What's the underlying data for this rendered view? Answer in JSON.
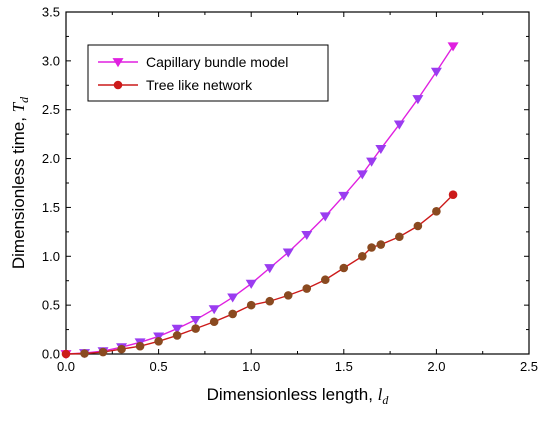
{
  "chart_data": {
    "type": "line",
    "title": "",
    "xlabel": "Dimensionless length, ",
    "xlabel_var": "l",
    "xlabel_sub": "d",
    "ylabel": "Dimensionless time, ",
    "ylabel_var": "T",
    "ylabel_sub": "d",
    "xlim": [
      0.0,
      2.5
    ],
    "ylim": [
      0.0,
      3.5
    ],
    "xticks": [
      "0.0",
      "0.5",
      "1.0",
      "1.5",
      "2.0",
      "2.5"
    ],
    "yticks": [
      "0.0",
      "0.5",
      "1.0",
      "1.5",
      "2.0",
      "2.5",
      "3.0",
      "3.5"
    ],
    "grid": false,
    "legend_position": "top-left",
    "series": [
      {
        "name": "Capillary bundle model",
        "color": "#e020e0",
        "marker_color": "#9a3cf0",
        "marker": "triangle-down",
        "x": [
          0.0,
          0.1,
          0.2,
          0.3,
          0.4,
          0.5,
          0.6,
          0.7,
          0.8,
          0.9,
          1.0,
          1.1,
          1.2,
          1.3,
          1.4,
          1.5,
          1.6,
          1.65,
          1.7,
          1.8,
          1.9,
          2.0,
          2.09
        ],
        "y": [
          0.0,
          0.01,
          0.03,
          0.07,
          0.12,
          0.18,
          0.26,
          0.35,
          0.46,
          0.58,
          0.72,
          0.88,
          1.04,
          1.22,
          1.41,
          1.62,
          1.84,
          1.97,
          2.1,
          2.35,
          2.61,
          2.89,
          3.15
        ]
      },
      {
        "name": "Tree like network",
        "color": "#cc1a1a",
        "marker_color": "#8a4a20",
        "marker": "circle",
        "x": [
          0.0,
          0.1,
          0.2,
          0.3,
          0.4,
          0.5,
          0.6,
          0.7,
          0.8,
          0.9,
          1.0,
          1.1,
          1.2,
          1.3,
          1.4,
          1.5,
          1.6,
          1.65,
          1.7,
          1.8,
          1.9,
          2.0,
          2.09
        ],
        "y": [
          0.0,
          0.005,
          0.02,
          0.05,
          0.08,
          0.13,
          0.19,
          0.26,
          0.33,
          0.41,
          0.5,
          0.54,
          0.6,
          0.67,
          0.76,
          0.88,
          1.0,
          1.09,
          1.12,
          1.2,
          1.31,
          1.46,
          1.63
        ]
      }
    ]
  }
}
